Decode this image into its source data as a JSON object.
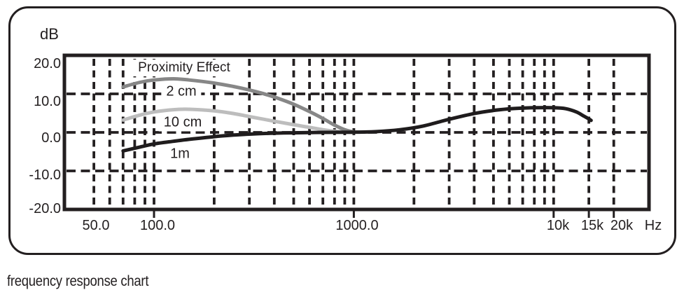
{
  "figure": {
    "y_axis_title": "dB",
    "x_unit_label": "Hz",
    "caption": "frequency response chart"
  },
  "colors": {
    "ink": "#231f20",
    "background": "#ffffff",
    "curve_2cm": "#878787",
    "curve_10cm": "#bdbdbd",
    "curve_1m": "#1f1c1d"
  },
  "chart_data": {
    "type": "line",
    "title": "",
    "ylabel": "dB",
    "xlabel": "Hz",
    "x_scale": "log",
    "xlim": [
      35.6,
      30000
    ],
    "ylim": [
      -20,
      20
    ],
    "grid": "dashed",
    "annotation": "Proximity Effect",
    "y_ticks": [
      {
        "value": 20,
        "label": "20.0"
      },
      {
        "value": 10,
        "label": "10.0"
      },
      {
        "value": 0,
        "label": "0.0"
      },
      {
        "value": -10,
        "label": "-10.0"
      },
      {
        "value": -20,
        "label": "-20.0"
      }
    ],
    "x_ticks": [
      {
        "freq": 50,
        "label": "50.0",
        "tick": false
      },
      {
        "freq": 100,
        "label": "100.0",
        "tick": true
      },
      {
        "freq": 1000,
        "label": "1000.0",
        "tick": true
      },
      {
        "freq": 10000,
        "label": "10k",
        "tick": true
      },
      {
        "freq": 15000,
        "label": "15k",
        "tick": true
      },
      {
        "freq": 20000,
        "label": "20k",
        "tick": true
      }
    ],
    "h_gridlines_db": [
      10,
      0,
      -10
    ],
    "v_gridlines_hz": [
      50,
      60,
      70,
      80,
      90,
      100,
      200,
      300,
      400,
      500,
      600,
      700,
      800,
      900,
      1000,
      2000,
      3000,
      4000,
      5000,
      6000,
      7000,
      8000,
      9000,
      10000,
      15000,
      20000
    ],
    "series": [
      {
        "name": "2 cm",
        "color": "#878787",
        "points": [
          [
            70,
            11.8
          ],
          [
            85,
            13.0
          ],
          [
            100,
            13.6
          ],
          [
            125,
            13.9
          ],
          [
            150,
            13.6
          ],
          [
            200,
            12.8
          ],
          [
            250,
            11.9
          ],
          [
            300,
            11.0
          ],
          [
            350,
            10.1
          ],
          [
            420,
            8.8
          ],
          [
            500,
            7.3
          ],
          [
            600,
            5.4
          ],
          [
            700,
            3.6
          ],
          [
            800,
            1.9
          ],
          [
            900,
            0.7
          ],
          [
            1000,
            0.1
          ]
        ]
      },
      {
        "name": "10 cm",
        "color": "#bdbdbd",
        "points": [
          [
            70,
            3.2
          ],
          [
            85,
            4.5
          ],
          [
            100,
            5.3
          ],
          [
            125,
            5.9
          ],
          [
            150,
            6.0
          ],
          [
            200,
            5.6
          ],
          [
            250,
            4.9
          ],
          [
            300,
            4.1
          ],
          [
            400,
            2.9
          ],
          [
            500,
            2.0
          ],
          [
            600,
            1.3
          ],
          [
            700,
            0.7
          ],
          [
            800,
            0.3
          ],
          [
            900,
            0.1
          ],
          [
            1000,
            0.0
          ]
        ]
      },
      {
        "name": "1m",
        "color": "#1f1c1d",
        "points": [
          [
            70,
            -4.8
          ],
          [
            85,
            -3.8
          ],
          [
            100,
            -3.0
          ],
          [
            125,
            -2.3
          ],
          [
            150,
            -1.8
          ],
          [
            200,
            -1.1
          ],
          [
            250,
            -0.7
          ],
          [
            300,
            -0.45
          ],
          [
            400,
            -0.2
          ],
          [
            500,
            -0.1
          ],
          [
            700,
            0
          ],
          [
            1000,
            0.05
          ],
          [
            1300,
            0.2
          ],
          [
            1700,
            0.7
          ],
          [
            2200,
            1.6
          ],
          [
            3000,
            3.4
          ],
          [
            4000,
            4.9
          ],
          [
            5000,
            5.7
          ],
          [
            6000,
            6.1
          ],
          [
            7000,
            6.3
          ],
          [
            8000,
            6.4
          ],
          [
            10000,
            6.4
          ],
          [
            11500,
            6.15
          ],
          [
            13000,
            5.3
          ],
          [
            14200,
            4.2
          ],
          [
            15000,
            3.5
          ],
          [
            15400,
            3.1
          ]
        ]
      }
    ]
  }
}
